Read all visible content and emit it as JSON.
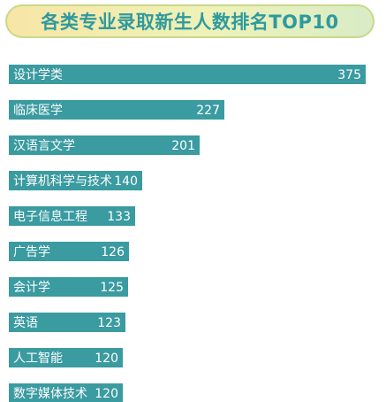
{
  "colors": {
    "bar": "#3a9ba0",
    "text": "#ffffff",
    "title": "#2f9a9e"
  },
  "chart_data": {
    "type": "bar",
    "orientation": "horizontal",
    "title": "各类专业录取新生人数排名TOP10",
    "xlabel": "",
    "ylabel": "",
    "xlim": [
      0,
      380
    ],
    "grid": false,
    "categories": [
      "设计学类",
      "临床医学",
      "汉语言文学",
      "计算机科学与技术",
      "电子信息工程",
      "广告学",
      "会计学",
      "英语",
      "人工智能",
      "数字媒体技术"
    ],
    "values": [
      375,
      227,
      201,
      140,
      133,
      126,
      125,
      123,
      120,
      120
    ],
    "value_labels": [
      "375",
      "227",
      "201",
      "140",
      "133",
      "126",
      "125",
      "123",
      "120",
      "120"
    ]
  }
}
